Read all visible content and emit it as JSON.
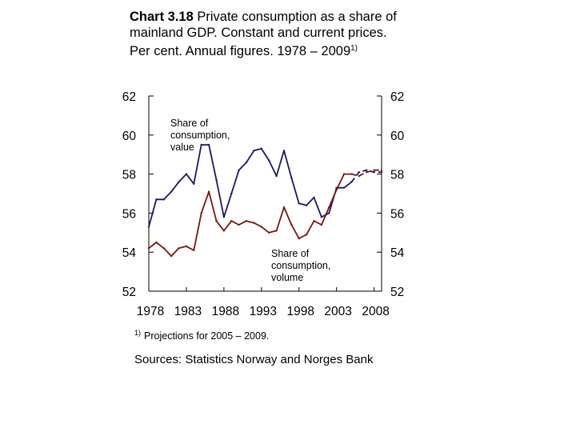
{
  "title": {
    "label": "Chart 3.18",
    "text": " Private consumption as a share of mainland GDP. Constant and current prices. Per cent. Annual figures. 1978 – 2009",
    "marker": "1)"
  },
  "footnote": {
    "marker": "1)",
    "text": "Projections for 2005 – 2009."
  },
  "source": "Sources: Statistics Norway and Norges Bank",
  "chart_data": {
    "type": "line",
    "x_tick_labels": [
      "1978",
      "1983",
      "1988",
      "1993",
      "1998",
      "2003",
      "2008"
    ],
    "x_ticks": [
      1978,
      1983,
      1988,
      1993,
      1998,
      2003,
      2008
    ],
    "y_tick_labels": [
      "52",
      "54",
      "56",
      "58",
      "60",
      "62"
    ],
    "y_ticks": [
      52,
      54,
      56,
      58,
      60,
      62
    ],
    "xlim": [
      1978,
      2009
    ],
    "ylim": [
      52,
      62
    ],
    "projection_from": 2005,
    "colors": {
      "value": "#1a1a5c",
      "volume": "#7a1515"
    },
    "annotations": [
      {
        "series": "value",
        "lines": [
          "Share of",
          "consumption,",
          "value"
        ]
      },
      {
        "series": "volume",
        "lines": [
          "Share of",
          "consumption,",
          "volume"
        ]
      }
    ],
    "series": [
      {
        "key": "value",
        "x": [
          1978,
          1979,
          1980,
          1981,
          1982,
          1983,
          1984,
          1985,
          1986,
          1987,
          1988,
          1989,
          1990,
          1991,
          1992,
          1993,
          1994,
          1995,
          1996,
          1997,
          1998,
          1999,
          2000,
          2001,
          2002,
          2003,
          2004,
          2005,
          2006,
          2007,
          2008,
          2009
        ],
        "values": [
          55.3,
          56.7,
          56.7,
          57.1,
          57.6,
          58.0,
          57.5,
          59.5,
          59.5,
          57.7,
          55.8,
          57.0,
          58.2,
          58.6,
          59.2,
          59.3,
          58.7,
          57.9,
          59.2,
          57.8,
          56.5,
          56.4,
          56.8,
          55.8,
          56.0,
          57.3,
          57.3,
          57.6,
          58.1,
          58.2,
          58.1,
          58.1
        ]
      },
      {
        "key": "volume",
        "x": [
          1978,
          1979,
          1980,
          1981,
          1982,
          1983,
          1984,
          1985,
          1986,
          1987,
          1988,
          1989,
          1990,
          1991,
          1992,
          1993,
          1994,
          1995,
          1996,
          1997,
          1998,
          1999,
          2000,
          2001,
          2002,
          2003,
          2004,
          2005,
          2006,
          2007,
          2008,
          2009
        ],
        "values": [
          54.2,
          54.5,
          54.2,
          53.8,
          54.2,
          54.3,
          54.1,
          56.0,
          57.1,
          55.6,
          55.1,
          55.6,
          55.4,
          55.6,
          55.5,
          55.3,
          55.0,
          55.1,
          56.3,
          55.4,
          54.7,
          54.9,
          55.6,
          55.4,
          56.3,
          57.2,
          58.0,
          58.0,
          57.9,
          58.1,
          58.2,
          58.2
        ]
      }
    ]
  }
}
